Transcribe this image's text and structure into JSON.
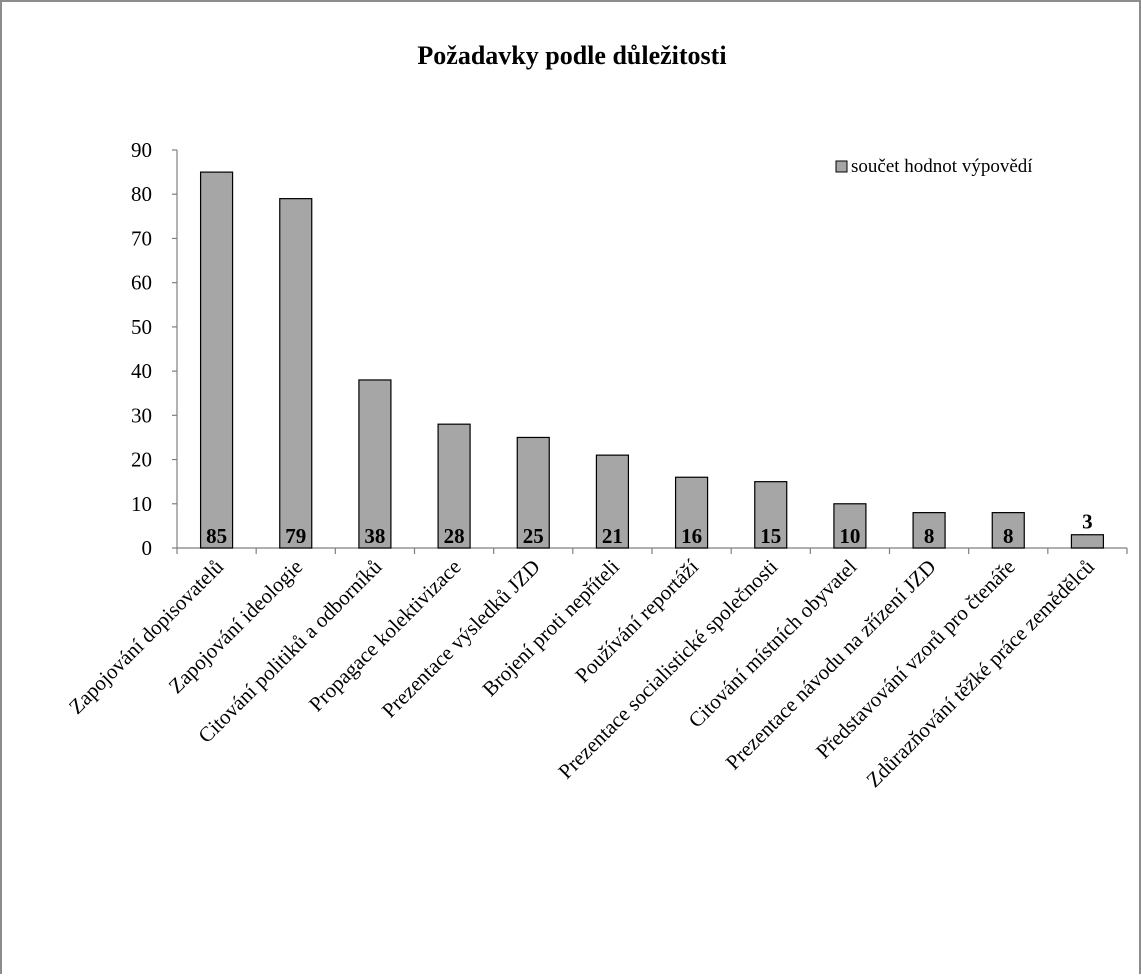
{
  "chart_data": {
    "type": "bar",
    "title": "Požadavky podle důležitosti",
    "xlabel": "",
    "ylabel": "",
    "ylim": [
      0,
      90
    ],
    "yticks": [
      "0",
      "10",
      "20",
      "30",
      "40",
      "50",
      "60",
      "70",
      "80",
      "90"
    ],
    "grid": false,
    "legend_position": "top-right",
    "categories": [
      "Zapojování dopisovatelů",
      "Zapojování ideologie",
      "Citování politiků a odborníků",
      "Propagace kolektivizace",
      "Prezentace výsledků JZD",
      "Brojení proti nepříteli",
      "Používání reportáží",
      "Prezentace socialistické společnosti",
      "Citování místních obyvatel",
      "Prezentace návodu na zřízení JZD",
      "Představování vzorů pro čtenáře",
      "Zdůrazňování těžké práce zemědělců"
    ],
    "series": [
      {
        "name": "součet hodnot výpovědí",
        "values": [
          85,
          79,
          38,
          28,
          25,
          21,
          16,
          15,
          10,
          8,
          8,
          3
        ],
        "color": "#a6a6a6"
      }
    ]
  }
}
